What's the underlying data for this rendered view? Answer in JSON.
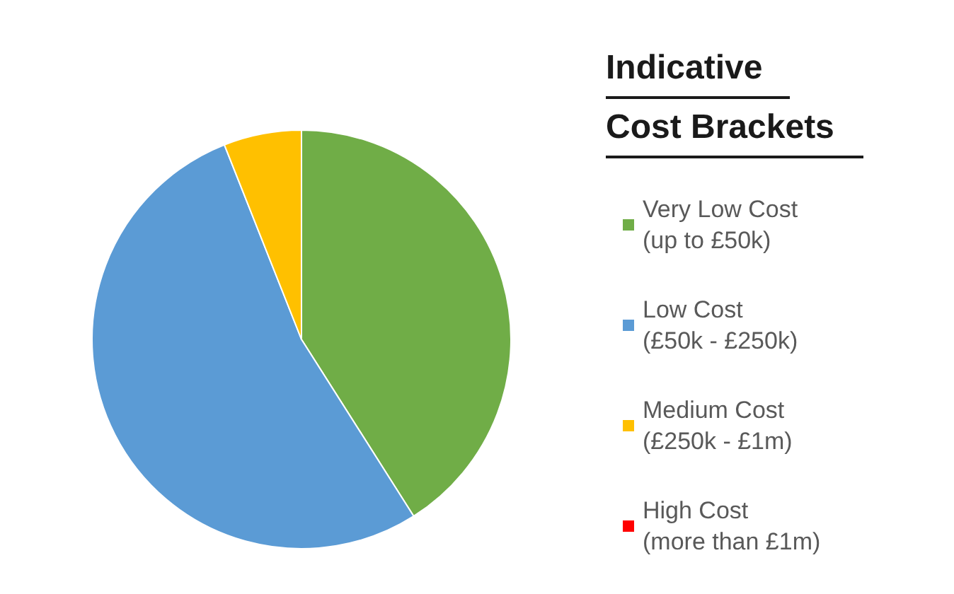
{
  "chart_data": {
    "type": "pie",
    "legend_title": "Indicative\nCost Brackets",
    "legend": "right",
    "categories": [
      "Very Low Cost\n(up to £50k)",
      "Low Cost\n(£50k - £250k)",
      "Medium Cost\n(£250k - £1m)",
      "High Cost\n(more than £1m)"
    ],
    "values": [
      41,
      53,
      6,
      0
    ],
    "colors": [
      "#70ad47",
      "#5b9bd5",
      "#ffc000",
      "#ff0000"
    ]
  }
}
